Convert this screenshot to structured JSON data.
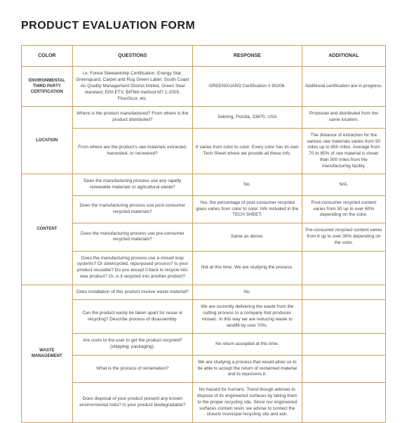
{
  "title": "PRODUCT EVALUATION FORM",
  "headers": {
    "c0": "COLOR",
    "c1": "QUESTIONS",
    "c2": "RESPONSE",
    "c3": "ADDITIONAL"
  },
  "sections": [
    {
      "category": "ENVIRONMENTAL THIRD PARTY CERTIFICATION",
      "rows": [
        {
          "q": "i.e. Forest Stewardship Certification, Energy Star, Greenguard, Carpet and Rug Green Label, South Coast Air Quality Management District limited, Green Seal standard, EPA ETV, BIFMA method M7.1-2005, FloorScor, etc.",
          "r": "GREENGUARD Certification # 90206.",
          "a": "Additional certification are in progress."
        }
      ]
    },
    {
      "category": "LOCATION",
      "rows": [
        {
          "q": "Where is the product manufactured? From where is the product distributed?",
          "r": "Sebring, Florida, 33870, USA",
          "a": "Produced and distributed from the same location."
        },
        {
          "q": "From where are the product's raw materials extracted, harvested, or recovered?",
          "r": "It varies from color to color. Every color has its own Tech Sheet where we provide all these info.",
          "a": "The distance of extraction for the various raw materials varies from 50 miles up to 850 miles. Average from 70 to 85% of raw material is closer than 500 miles from the manufacturing facility."
        }
      ]
    },
    {
      "category": "CONTENT",
      "rows": [
        {
          "q": "Does the manufacturing process use any rapidly renewable materials or agricultural waste?",
          "r": "No.",
          "a": "N/A."
        },
        {
          "q": "Does the manufacturing process use post-consumer recycled materials?",
          "r": "Yes, the percentage of post consumer recycled glass varies from color to color. Info included in the TECH SHEET.",
          "a": "Post-consumer recycled content varies from 30 up to over 60% depending on the color."
        },
        {
          "q": "Does the manufacturing process use pre-consumer recycled materials?",
          "r": "Same as above.",
          "a": "Pre-consumer recycled content varies from 6 up to over 30% depending on the color."
        },
        {
          "q": "Does the manufacturing process use a closed loop systems? Or downcycled, repurposed process? Is your product reusable? Do you accept it back to recycle into new product? Or, is it recycled into another product?",
          "r": "Not at this time. We are studying the process.",
          "a": ""
        }
      ]
    },
    {
      "category": "WASTE MANAGEMENT",
      "rows": [
        {
          "q": "Does installation of this product involve waste material?",
          "r": "No.",
          "a": ""
        },
        {
          "q": "Can the product easily be taken apart for reuse or recycling? Describe process of disassembly.",
          "r": "We are currently delivering the waste from the cutting process to a company that produces mosaic. In this way we are reducing waste to landfill by over 70%.",
          "a": ""
        },
        {
          "q": "Are costs to the user to get the product recycled? (shipping, packaging).",
          "r": "No return accepted at this time.",
          "a": ""
        },
        {
          "q": "What is the process of reclamation?",
          "r": "We are studying a process that would allow us to be able to accept the return of reclaimed material and to reprocess it.",
          "a": ""
        },
        {
          "q": "Does disposal of your product present any known environmental risks? Is your product biodegradable?",
          "r": "No hazard for humans. Trend though advises to dispose of its engineered surfaces by taking them to the proper recycling site. Since our engineered surfaces contain resin, we advise to contact the closest municipal recycling site and ask.",
          "a": ""
        }
      ]
    }
  ]
}
